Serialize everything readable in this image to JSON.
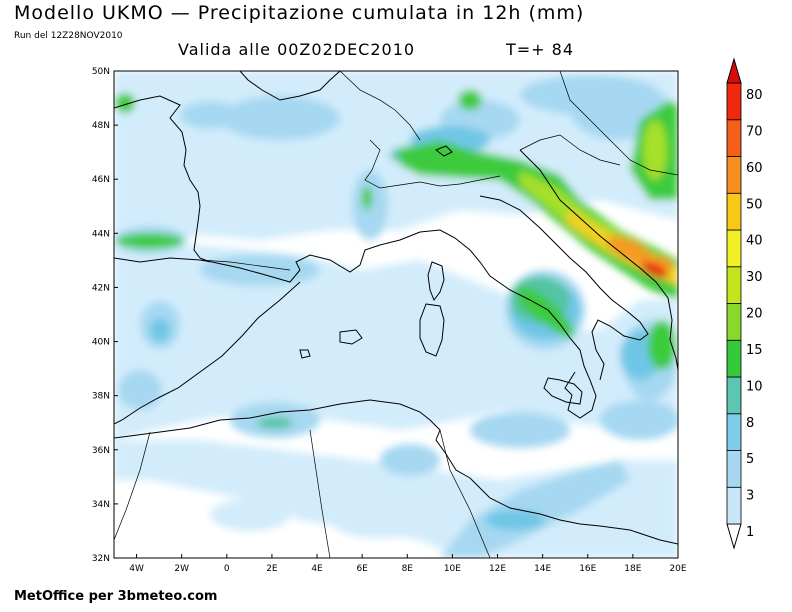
{
  "header": {
    "title": "Modello UKMO — Precipitazione cumulata in 12h (mm)",
    "run": "Run del 12Z28NOV2010",
    "valid": "Valida alle 00Z02DEC2010",
    "timestep": "T=+ 84"
  },
  "footer": {
    "credit": "MetOffice per 3bmeteo.com"
  },
  "map": {
    "lon_range": [
      -5,
      20
    ],
    "lat_range": [
      32,
      50
    ],
    "x_ticks": [
      "4W",
      "2W",
      "0",
      "2E",
      "4E",
      "6E",
      "8E",
      "10E",
      "12E",
      "14E",
      "16E",
      "18E",
      "20E"
    ],
    "y_ticks": [
      "50N",
      "48N",
      "46N",
      "44N",
      "42N",
      "40N",
      "38N",
      "36N",
      "34N",
      "32N"
    ]
  },
  "colorbar": {
    "labels": [
      "80",
      "70",
      "60",
      "50",
      "40",
      "30",
      "20",
      "15",
      "10",
      "8",
      "5",
      "3",
      "1"
    ],
    "colors": [
      "#ffffff",
      "#c8e6f8",
      "#a8d8f0",
      "#7ecbea",
      "#5cc6b0",
      "#36c93c",
      "#8ad82a",
      "#c4e41c",
      "#f0f024",
      "#f8c818",
      "#f89020",
      "#f46018",
      "#f02810",
      "#d80c0c"
    ]
  }
}
